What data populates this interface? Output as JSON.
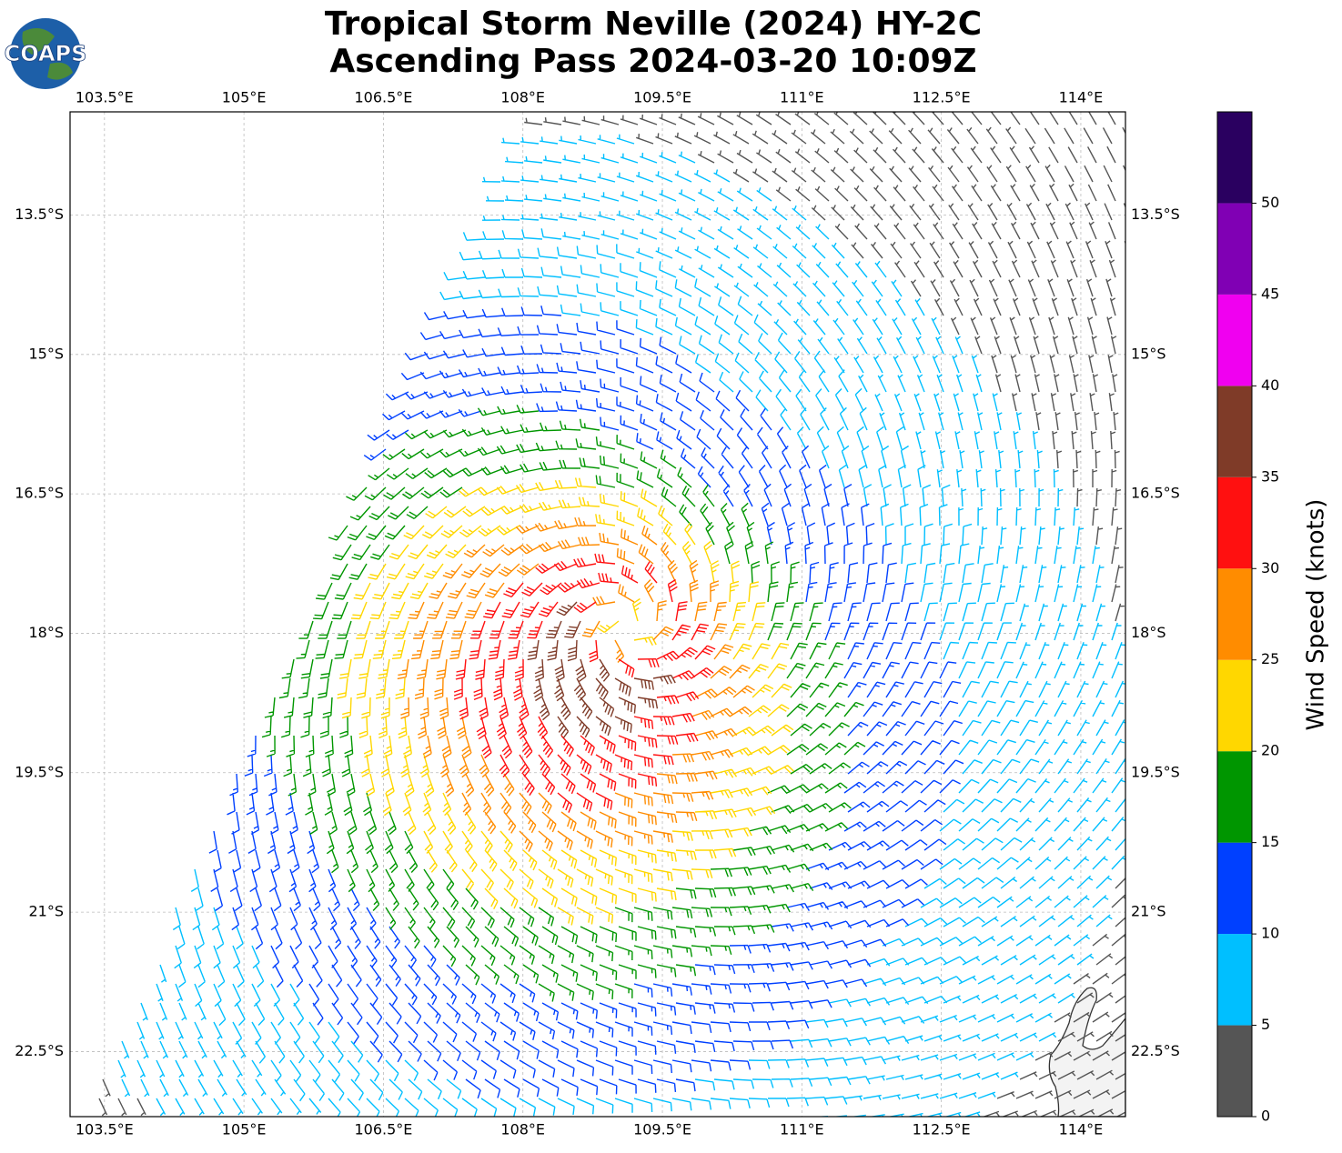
{
  "chart_data": {
    "type": "windbarb-map",
    "title": "Tropical Storm Neville (2024) HY-2C",
    "subtitle": "Ascending Pass 2024-03-20 10:09Z",
    "logo_text": "COAPS",
    "xlim": [
      103.13,
      114.48
    ],
    "ylim": [
      -23.2,
      -12.39
    ],
    "xticks": [
      {
        "value": 103.5,
        "label": "103.5°E"
      },
      {
        "value": 105,
        "label": "105°E"
      },
      {
        "value": 106.5,
        "label": "106.5°E"
      },
      {
        "value": 108,
        "label": "108°E"
      },
      {
        "value": 109.5,
        "label": "109.5°E"
      },
      {
        "value": 111,
        "label": "111°E"
      },
      {
        "value": 112.5,
        "label": "112.5°E"
      },
      {
        "value": 114,
        "label": "114°E"
      }
    ],
    "yticks": [
      {
        "value": -13.5,
        "label": "13.5°S"
      },
      {
        "value": -15,
        "label": "15°S"
      },
      {
        "value": -16.5,
        "label": "16.5°S"
      },
      {
        "value": -18,
        "label": "18°S"
      },
      {
        "value": -19.5,
        "label": "19.5°S"
      },
      {
        "value": -21,
        "label": "21°S"
      },
      {
        "value": -22.5,
        "label": "22.5°S"
      }
    ],
    "grid": true,
    "colorbar": {
      "label": "Wind Speed (knots)",
      "bounds": [
        0,
        5,
        10,
        15,
        20,
        25,
        30,
        35,
        40,
        45,
        50,
        55
      ],
      "colors": [
        "#555555",
        "#00bfff",
        "#0040ff",
        "#009600",
        "#ffd700",
        "#ff8c00",
        "#ff1010",
        "#7f3b28",
        "#f000f0",
        "#8000b4",
        "#2a0060"
      ],
      "ticks": [
        0,
        5,
        10,
        15,
        20,
        25,
        30,
        35,
        40,
        45,
        50
      ]
    }
  }
}
